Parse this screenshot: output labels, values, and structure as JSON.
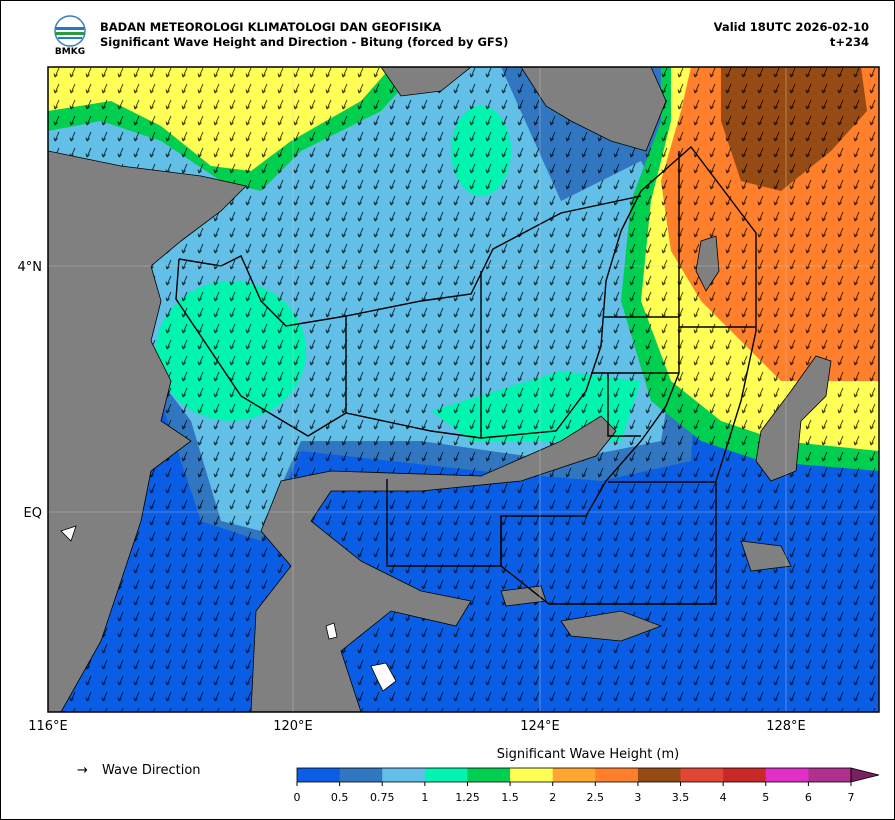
{
  "header": {
    "agency": "BADAN METEOROLOGI KLIMATOLOGI DAN GEOFISIKA",
    "subtitle": "Significant Wave Height and Direction - Bitung (forced by GFS)",
    "valid": "Valid 18UTC 2026-02-10",
    "step": "t+234",
    "logo_text": "BMKG"
  },
  "map": {
    "lat_labels": [
      "4°N",
      "EQ"
    ],
    "lon_labels": [
      "116°E",
      "120°E",
      "124°E",
      "128°E"
    ]
  },
  "legend": {
    "arrow": "→",
    "label": "Wave Direction"
  },
  "colorbar": {
    "title": "Significant Wave Height (m)",
    "ticks": [
      "0",
      "0.5",
      "0.75",
      "1",
      "1.25",
      "1.5",
      "2",
      "2.5",
      "3",
      "3.5",
      "4",
      "5",
      "6",
      "7"
    ],
    "colors": [
      "#0a5ee6",
      "#3076c0",
      "#62bfe8",
      "#00f5b0",
      "#00cf50",
      "#ffff55",
      "#ffa530",
      "#ff7f2a",
      "#964b14",
      "#e04535",
      "#c82828",
      "#e030c8",
      "#b03090"
    ],
    "extend_color": "#7a2060"
  }
}
